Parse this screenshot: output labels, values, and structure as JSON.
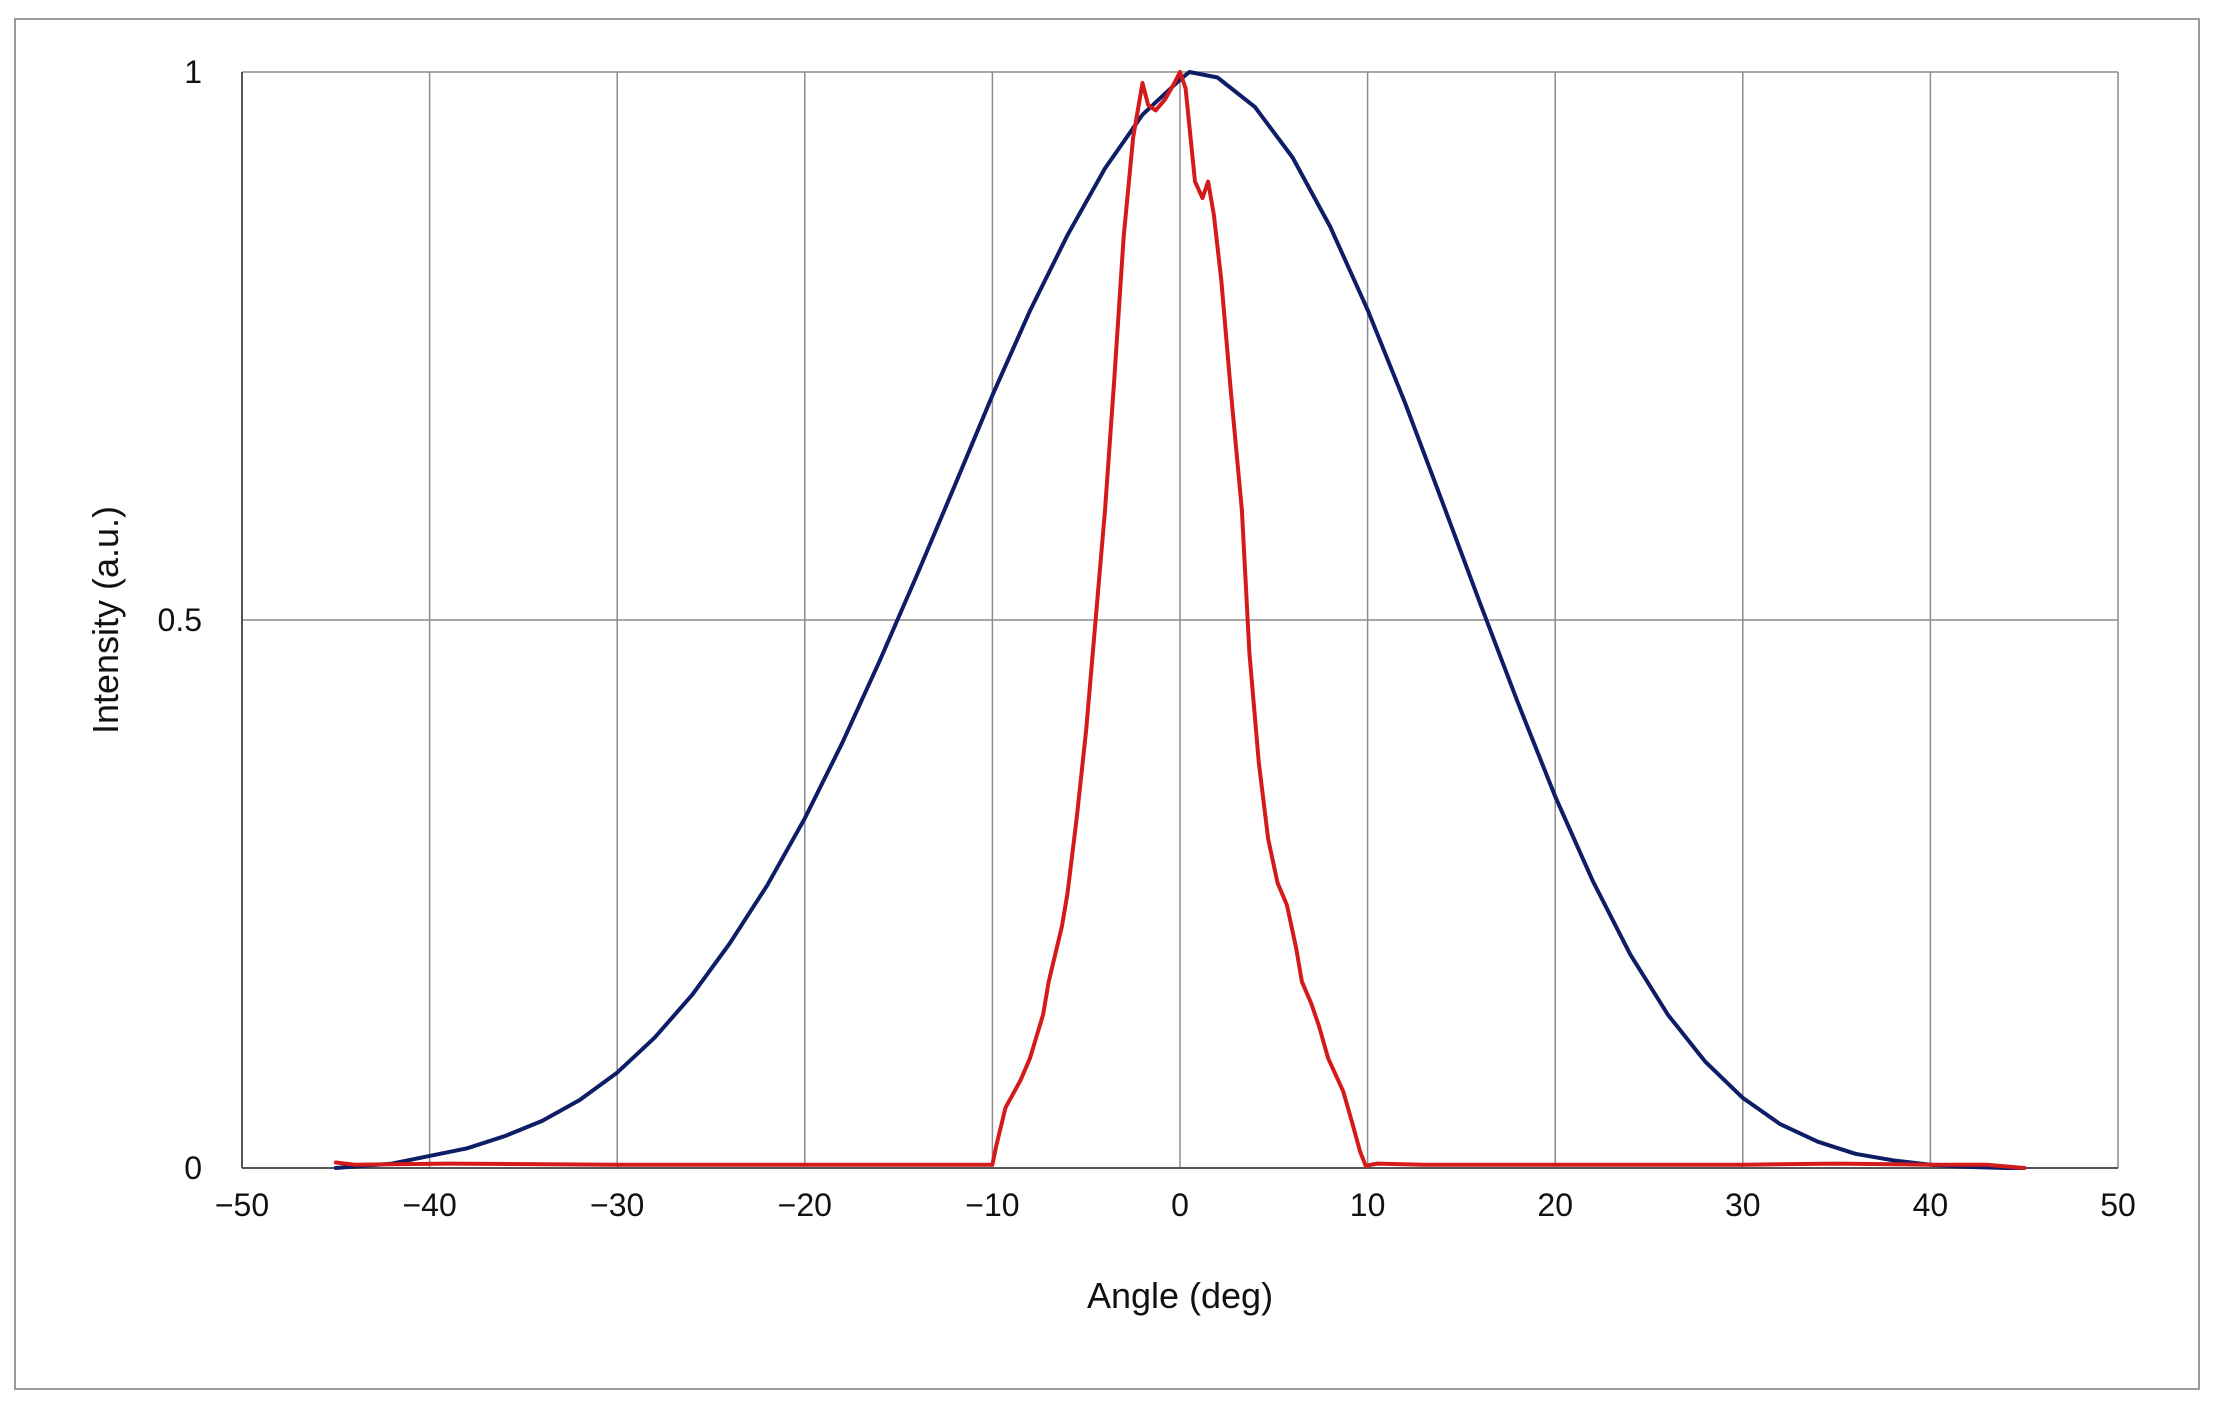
{
  "chart_data": {
    "type": "line",
    "title": "",
    "xlabel": "Angle (deg)",
    "ylabel": "Intensity (a.u.)",
    "xlim": [
      -50,
      50
    ],
    "ylim": [
      0,
      1
    ],
    "grid": true,
    "x_ticks": [
      "−50",
      "−40",
      "−30",
      "−20",
      "−10",
      "0",
      "10",
      "20",
      "30",
      "40",
      "50"
    ],
    "y_ticks": [
      "0",
      "0.5",
      "1"
    ],
    "series": [
      {
        "color": "#0d1d66",
        "x": [
          -45,
          -42,
          -40,
          -38,
          -36,
          -34,
          -32,
          -30,
          -28,
          -26,
          -24,
          -22,
          -20,
          -18,
          -16,
          -14,
          -12,
          -10,
          -8,
          -6,
          -4,
          -2,
          0,
          0.5,
          2,
          4,
          6,
          8,
          10,
          12,
          14,
          16,
          18,
          20,
          22,
          24,
          26,
          28,
          30,
          32,
          34,
          36,
          38,
          40,
          42,
          44,
          45
        ],
        "y": [
          0.0,
          0.004,
          0.011,
          0.018,
          0.029,
          0.043,
          0.062,
          0.087,
          0.119,
          0.158,
          0.205,
          0.258,
          0.319,
          0.388,
          0.463,
          0.542,
          0.623,
          0.705,
          0.782,
          0.851,
          0.912,
          0.961,
          0.993,
          1.0,
          0.995,
          0.968,
          0.922,
          0.859,
          0.783,
          0.698,
          0.607,
          0.515,
          0.425,
          0.339,
          0.262,
          0.195,
          0.14,
          0.097,
          0.064,
          0.04,
          0.024,
          0.013,
          0.007,
          0.003,
          0.001,
          0.0,
          0.0
        ]
      },
      {
        "color": "#d41a1a",
        "x": [
          -45,
          -44,
          -39,
          -30,
          -20,
          -12,
          -10,
          -9.8,
          -9.3,
          -8.5,
          -8,
          -7.3,
          -7,
          -6.3,
          -6,
          -5.5,
          -5,
          -4.5,
          -4,
          -3.5,
          -3,
          -2.5,
          -2,
          -1.7,
          -1.3,
          -0.8,
          -0.3,
          0,
          0.3,
          0.8,
          1.2,
          1.5,
          1.8,
          2.2,
          2.7,
          3.3,
          3.7,
          4.2,
          4.7,
          5.2,
          5.7,
          6.2,
          6.5,
          7,
          7.4,
          7.9,
          8.3,
          8.7,
          9.2,
          9.6,
          9.9,
          10.5,
          13,
          20,
          30,
          35,
          40,
          43,
          45
        ],
        "y": [
          0.005,
          0.003,
          0.004,
          0.003,
          0.003,
          0.003,
          0.003,
          0.02,
          0.055,
          0.08,
          0.1,
          0.14,
          0.17,
          0.22,
          0.25,
          0.32,
          0.4,
          0.5,
          0.6,
          0.72,
          0.85,
          0.94,
          0.99,
          0.97,
          0.965,
          0.975,
          0.99,
          1.0,
          0.985,
          0.9,
          0.885,
          0.9,
          0.87,
          0.81,
          0.71,
          0.6,
          0.47,
          0.37,
          0.3,
          0.26,
          0.24,
          0.2,
          0.17,
          0.15,
          0.13,
          0.1,
          0.085,
          0.07,
          0.04,
          0.015,
          0.002,
          0.004,
          0.003,
          0.003,
          0.003,
          0.004,
          0.003,
          0.003,
          0.0
        ]
      }
    ]
  }
}
